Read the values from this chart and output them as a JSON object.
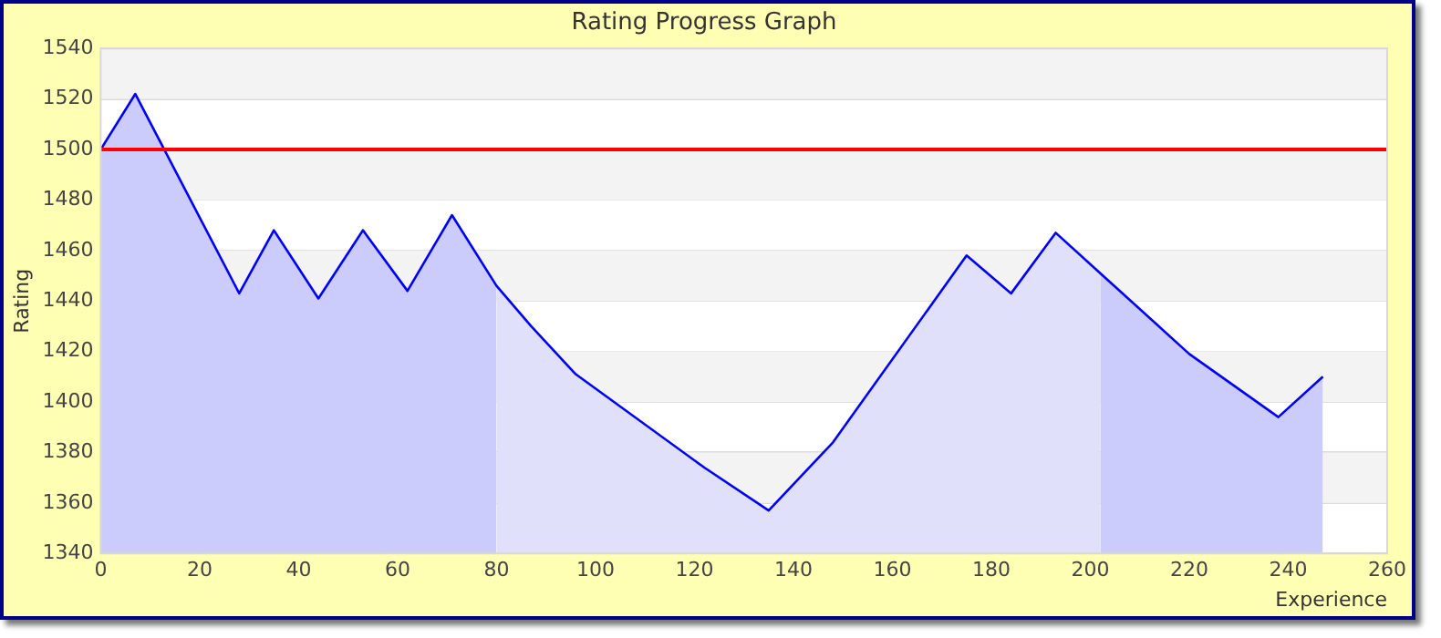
{
  "chart_data": {
    "type": "area",
    "title": "Rating Progress Graph",
    "xlabel": "Experience",
    "ylabel": "Rating",
    "series": [
      {
        "color": "#ccccfc",
        "x": [
          0,
          7,
          28,
          35,
          44,
          53,
          62,
          71,
          80
        ],
        "values": [
          1500,
          1522,
          1443,
          1468,
          1441,
          1468,
          1444,
          1474,
          1446
        ]
      },
      {
        "color": "#e0e0fb",
        "x": [
          80,
          87,
          96,
          122,
          135,
          148,
          175,
          184,
          193,
          202
        ],
        "values": [
          1446,
          1430,
          1411,
          1374,
          1357,
          1384,
          1458,
          1443,
          1467,
          1451
        ]
      },
      {
        "color": "#ccccfc",
        "x": [
          202,
          220,
          238,
          247
        ],
        "values": [
          1451,
          1419,
          1394,
          1410
        ]
      },
      {
        "type": "line",
        "color": "#0000ff",
        "x": [
          0,
          7,
          28,
          35,
          44,
          53,
          62,
          71,
          80,
          87,
          96,
          122,
          135,
          148,
          175,
          184,
          193,
          202,
          220,
          238,
          247
        ],
        "values": [
          1500,
          1522,
          1443,
          1468,
          1441,
          1468,
          1444,
          1474,
          1446,
          1430,
          1411,
          1374,
          1357,
          1384,
          1458,
          1443,
          1467,
          1451,
          1419,
          1394,
          1410
        ]
      }
    ],
    "xlim": [
      0,
      260
    ],
    "xticks": [
      0,
      20,
      40,
      60,
      80,
      100,
      120,
      140,
      160,
      180,
      200,
      220,
      240,
      260
    ],
    "ylim": [
      1340,
      1540
    ],
    "yticks": [
      1340,
      1360,
      1380,
      1400,
      1420,
      1440,
      1460,
      1480,
      1500,
      1520,
      1540
    ],
    "grid": "y",
    "marker": "none",
    "line_style": "solid",
    "ref_lines": [
      {
        "axis": "y",
        "value": 1500,
        "color": "#ff0000"
      }
    ]
  }
}
